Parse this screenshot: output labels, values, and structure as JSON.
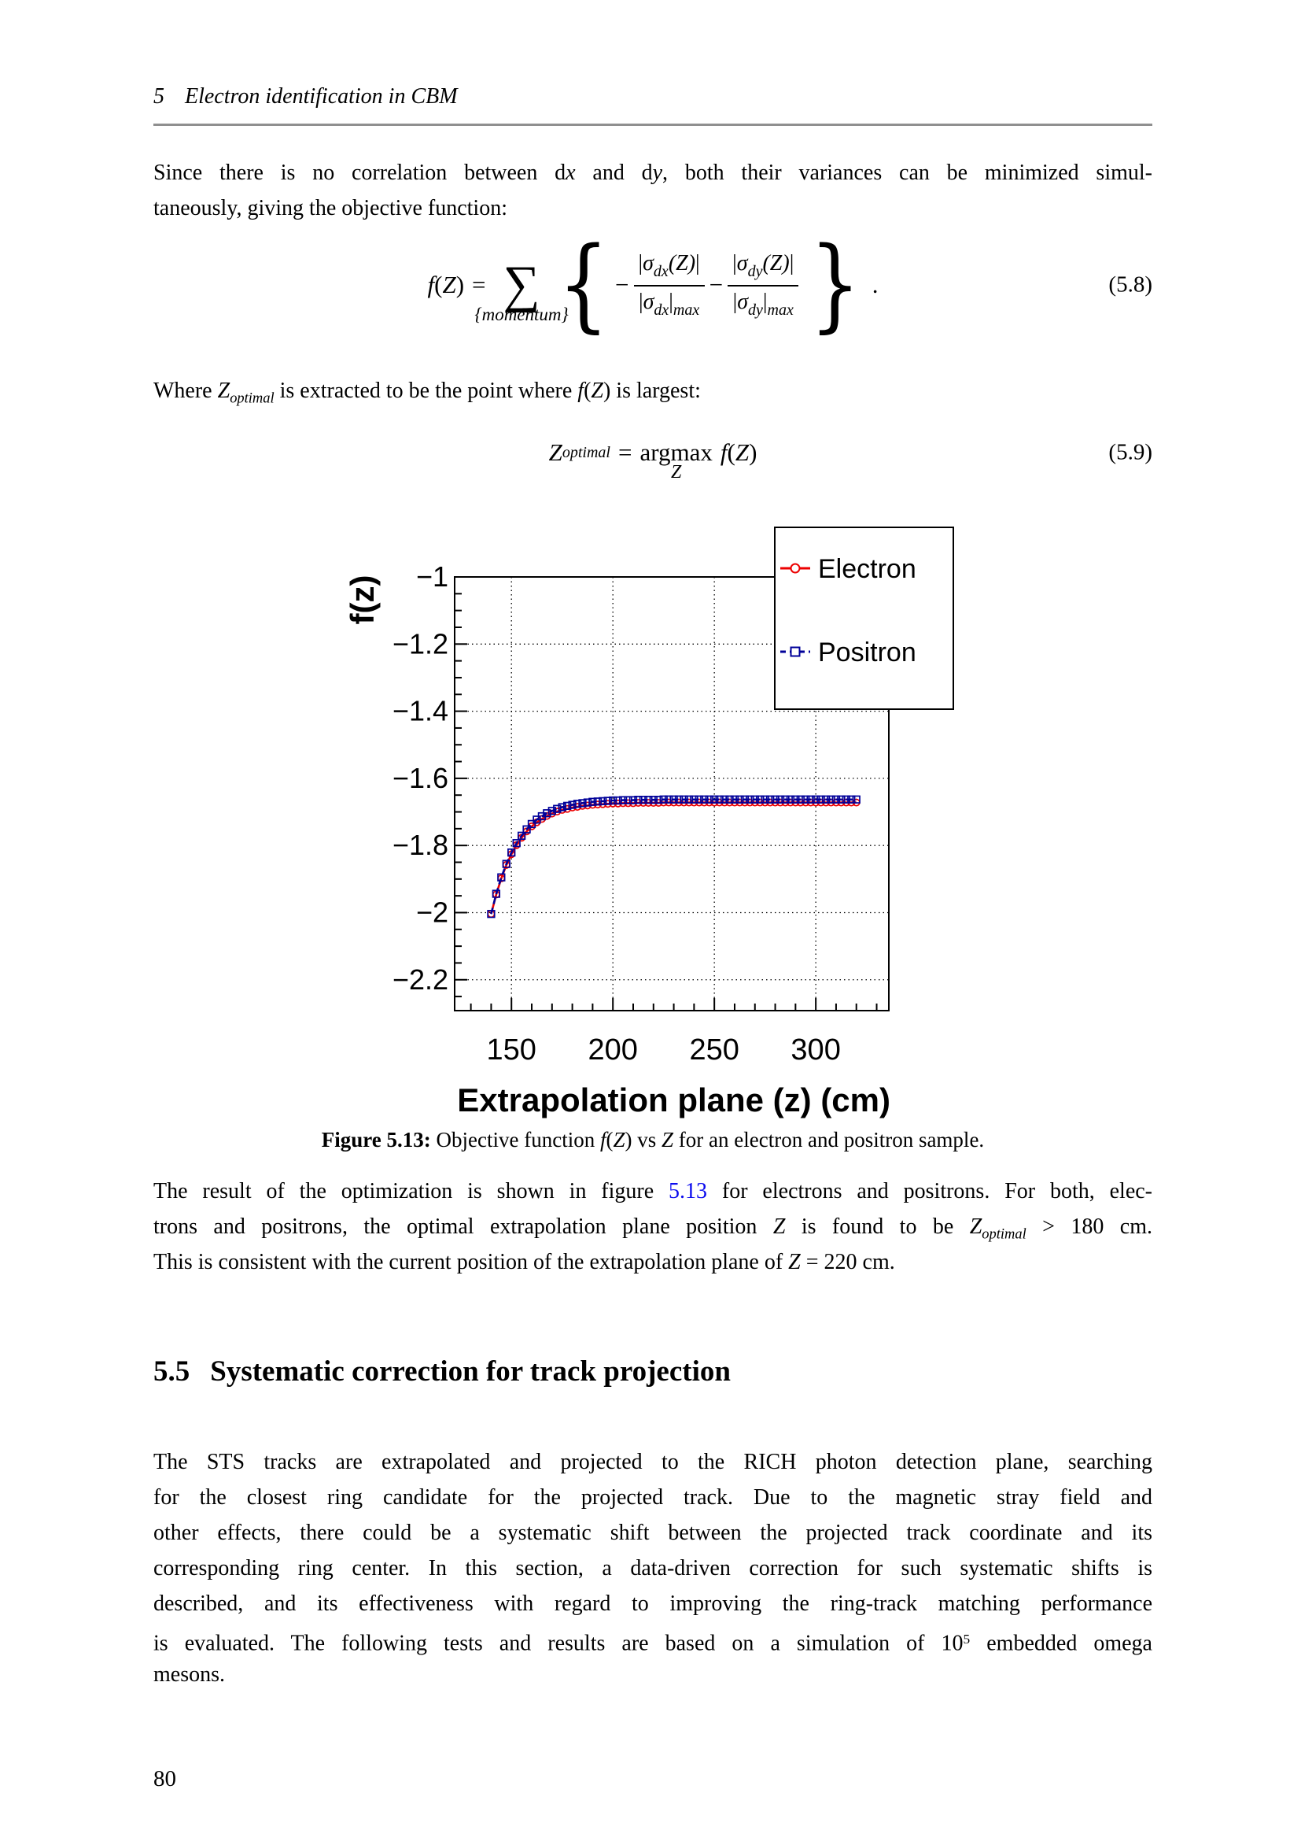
{
  "header": {
    "lines": [
      [
        {
          "t": "5",
          "s": "i"
        },
        {
          "t": "Electron identification in CBM",
          "s": "i gap"
        }
      ]
    ]
  },
  "page_number": "80",
  "paragraph1": [
    [
      {
        "t": "Since there is no correlation between d"
      },
      {
        "t": "x",
        "s": "i"
      },
      {
        "t": " and d"
      },
      {
        "t": "y",
        "s": "i"
      },
      {
        "t": ", both their variances can be minimized simul-"
      }
    ],
    [
      {
        "t": "taneously, giving the objective function:"
      }
    ]
  ],
  "where_line": [
    [
      {
        "t": "Where "
      },
      {
        "t": "Z",
        "s": "i"
      },
      {
        "t": "optimal",
        "s": "sub"
      },
      {
        "t": " is extracted to be the point where "
      },
      {
        "t": "f",
        "s": "i"
      },
      {
        "t": "("
      },
      {
        "t": "Z",
        "s": "i"
      },
      {
        "t": ") is largest:"
      }
    ]
  ],
  "eq58": {
    "f": "f",
    "lp": "(",
    "Z": "Z",
    "rp": ")",
    "eq": "=",
    "sum": "∑",
    "sum_sub": "{momentum}",
    "brace_open": "{",
    "brace_close": "}",
    "minus": "−",
    "bar": "|",
    "sigma": "σ",
    "dx": "dx",
    "dy": "dy",
    "pZ": "(Z)",
    "max": "max",
    "dot": ".",
    "number": "(5.8)"
  },
  "eq59": {
    "Z": "Z",
    "optimal": "optimal",
    "eq": "=",
    "op": "argmax",
    "under": "Z",
    "f": "f",
    "lp": "(",
    "Zb": "Z",
    "rp": ")",
    "number": "(5.9)"
  },
  "caption": [
    [
      {
        "t": "Figure 5.13:",
        "s": "b"
      },
      {
        "t": " Objective function "
      },
      {
        "t": "f",
        "s": "i"
      },
      {
        "t": "("
      },
      {
        "t": "Z",
        "s": "i"
      },
      {
        "t": ") vs "
      },
      {
        "t": "Z",
        "s": "i"
      },
      {
        "t": " for an electron and positron sample."
      }
    ]
  ],
  "paragraph2": [
    [
      {
        "t": "The result of the optimization is shown in figure "
      },
      {
        "t": "5.13",
        "s": "link"
      },
      {
        "t": " for electrons and positrons. For both, elec-"
      }
    ],
    [
      {
        "t": "trons and positrons, the optimal extrapolation plane position "
      },
      {
        "t": "Z",
        "s": "i"
      },
      {
        "t": " is found to be "
      },
      {
        "t": "Z",
        "s": "i"
      },
      {
        "t": "optimal",
        "s": "sub"
      },
      {
        "t": " > 180 cm."
      }
    ],
    [
      {
        "t": "This is consistent with the current position of the extrapolation plane of "
      },
      {
        "t": "Z",
        "s": "i"
      },
      {
        "t": " = 220 cm."
      }
    ]
  ],
  "section55": [
    [
      {
        "t": "5.5",
        "s": "b"
      },
      {
        "t": "Systematic correction for track projection",
        "s": "b gap"
      }
    ]
  ],
  "paragraph3": [
    [
      {
        "t": "The STS tracks are extrapolated and projected to the RICH photon detection plane, searching"
      }
    ],
    [
      {
        "t": "for the closest ring candidate for the projected track.  Due to the magnetic stray field and"
      }
    ],
    [
      {
        "t": "other effects, there could be a systematic shift between the projected track coordinate and its"
      }
    ],
    [
      {
        "t": "corresponding ring center. In this section, a data-driven correction for such systematic shifts is"
      }
    ],
    [
      {
        "t": "described, and its effectiveness with regard to improving the ring-track matching performance"
      }
    ],
    [
      {
        "t": "is evaluated. The following tests and results are based on a simulation of 10"
      },
      {
        "t": "5",
        "s": "sup"
      },
      {
        "t": " embedded omega"
      }
    ],
    [
      {
        "t": "mesons."
      }
    ]
  ],
  "chart_data": {
    "type": "line",
    "title": "",
    "xlabel": "Extrapolation plane (z) (cm)",
    "ylabel": "f(z)",
    "xlim": [
      122,
      336
    ],
    "ylim": [
      -2.292,
      -1.0
    ],
    "xticks": [
      150,
      200,
      250,
      300
    ],
    "xtick_labels": [
      "150",
      "200",
      "250",
      "300"
    ],
    "yticks": [
      -1.0,
      -1.2,
      -1.4,
      -1.6,
      -1.8,
      -2.0,
      -2.2
    ],
    "ytick_labels": [
      "−1",
      "−1.2",
      "−1.4",
      "−1.6",
      "−1.8",
      "−2",
      "−2.2"
    ],
    "x_minor_step": 10,
    "y_minor_step": 0.05,
    "grid": true,
    "frame_color": "#000000",
    "legend": {
      "position": "top-right",
      "entries": [
        "Electron",
        "Positron"
      ]
    },
    "x": [
      140,
      142.5,
      145,
      147.5,
      150,
      152.5,
      155,
      157.5,
      160,
      162.5,
      165,
      167.5,
      170,
      172.5,
      175,
      177.5,
      180,
      182.5,
      185,
      187.5,
      190,
      192.5,
      195,
      197.5,
      200,
      202.5,
      205,
      207.5,
      210,
      212.5,
      215,
      217.5,
      220,
      222.5,
      225,
      227.5,
      230,
      232.5,
      235,
      237.5,
      240,
      242.5,
      245,
      247.5,
      250,
      252.5,
      255,
      257.5,
      260,
      262.5,
      265,
      267.5,
      270,
      272.5,
      275,
      277.5,
      280,
      282.5,
      285,
      287.5,
      290,
      292.5,
      295,
      297.5,
      300,
      302.5,
      305,
      307.5,
      310,
      312.5,
      315,
      317.5,
      320
    ],
    "series": [
      {
        "name": "Electron",
        "color": "#ec0000",
        "marker": "circle",
        "line": "solid",
        "values": [
          -2.004,
          -1.946,
          -1.898,
          -1.858,
          -1.826,
          -1.799,
          -1.777,
          -1.758,
          -1.743,
          -1.731,
          -1.721,
          -1.712,
          -1.705,
          -1.699,
          -1.694,
          -1.691,
          -1.687,
          -1.685,
          -1.682,
          -1.681,
          -1.679,
          -1.678,
          -1.677,
          -1.676,
          -1.675,
          -1.675,
          -1.674,
          -1.674,
          -1.674,
          -1.673,
          -1.673,
          -1.673,
          -1.673,
          -1.673,
          -1.672,
          -1.672,
          -1.672,
          -1.672,
          -1.672,
          -1.672,
          -1.672,
          -1.672,
          -1.672,
          -1.672,
          -1.672,
          -1.672,
          -1.672,
          -1.672,
          -1.672,
          -1.672,
          -1.672,
          -1.672,
          -1.672,
          -1.672,
          -1.672,
          -1.672,
          -1.672,
          -1.672,
          -1.672,
          -1.672,
          -1.672,
          -1.672,
          -1.672,
          -1.672,
          -1.672,
          -1.672,
          -1.672,
          -1.672,
          -1.672,
          -1.672,
          -1.672,
          -1.672,
          -1.672
        ]
      },
      {
        "name": "Positron",
        "color": "#000099",
        "marker": "square",
        "line": "dashed",
        "values": [
          -2.004,
          -1.944,
          -1.895,
          -1.855,
          -1.821,
          -1.793,
          -1.771,
          -1.752,
          -1.736,
          -1.723,
          -1.713,
          -1.704,
          -1.697,
          -1.691,
          -1.686,
          -1.682,
          -1.679,
          -1.676,
          -1.674,
          -1.672,
          -1.67,
          -1.669,
          -1.668,
          -1.667,
          -1.666,
          -1.666,
          -1.665,
          -1.665,
          -1.665,
          -1.664,
          -1.664,
          -1.664,
          -1.664,
          -1.664,
          -1.663,
          -1.663,
          -1.663,
          -1.663,
          -1.663,
          -1.663,
          -1.663,
          -1.663,
          -1.663,
          -1.663,
          -1.663,
          -1.663,
          -1.663,
          -1.663,
          -1.663,
          -1.663,
          -1.663,
          -1.663,
          -1.663,
          -1.663,
          -1.663,
          -1.663,
          -1.663,
          -1.663,
          -1.663,
          -1.663,
          -1.663,
          -1.663,
          -1.663,
          -1.663,
          -1.663,
          -1.663,
          -1.663,
          -1.663,
          -1.663,
          -1.663,
          -1.663,
          -1.663,
          -1.663
        ]
      }
    ]
  }
}
